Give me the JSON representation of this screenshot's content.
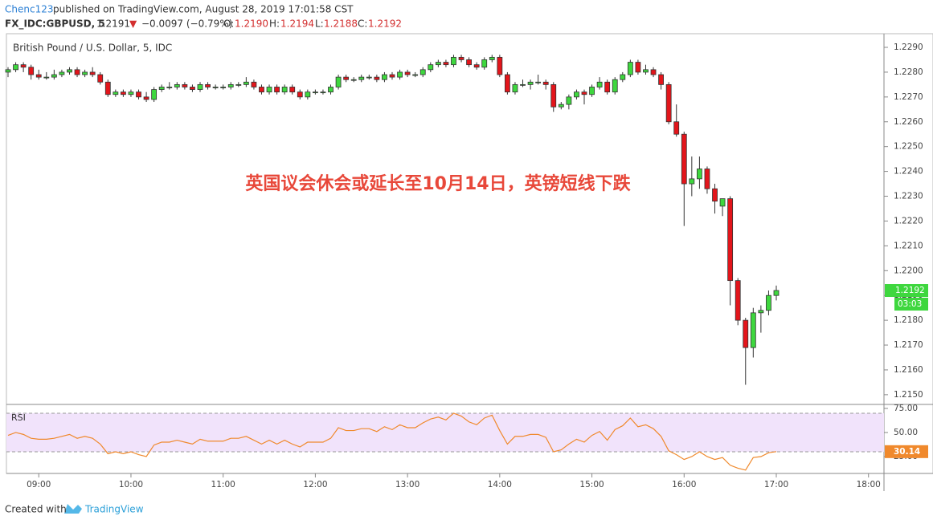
{
  "header": {
    "author": "Chenc123",
    "published": "published on TradingView.com, August 28, 2019 17:01:58 CST",
    "symbol": "FX_IDC:GBPUSD, 5",
    "last": "1.2191",
    "arrow": "▼",
    "change": "−0.0097 (−0.79%)",
    "o_label": "O:",
    "o": "1.2190",
    "h_label": "H:",
    "h": "1.2194",
    "l_label": "L:",
    "l": "1.2188",
    "c_label": "C:",
    "c": "1.2192"
  },
  "chart_data": {
    "type": "candlestick",
    "title": "British Pound / U.S. Dollar, 5, IDC",
    "annotation": "英国议会休会或延长至10月14日，英镑短线下跌",
    "up_color": "#3ed73e",
    "down_color": "#e3151b",
    "ylim": [
      1.21464,
      1.22955
    ],
    "yticks": [
      {
        "value": 1.215,
        "label": "1.2150"
      },
      {
        "value": 1.216,
        "label": "1.2160"
      },
      {
        "value": 1.217,
        "label": "1.2170"
      },
      {
        "value": 1.218,
        "label": "1.2180"
      },
      {
        "value": 1.219,
        "label": "1.2190"
      },
      {
        "value": 1.22,
        "label": "1.2200"
      },
      {
        "value": 1.221,
        "label": "1.2210"
      },
      {
        "value": 1.222,
        "label": "1.2220"
      },
      {
        "value": 1.223,
        "label": "1.2230"
      },
      {
        "value": 1.224,
        "label": "1.2240"
      },
      {
        "value": 1.225,
        "label": "1.2250"
      },
      {
        "value": 1.226,
        "label": "1.2260"
      },
      {
        "value": 1.227,
        "label": "1.2270"
      },
      {
        "value": 1.228,
        "label": "1.2280"
      },
      {
        "value": 1.229,
        "label": "1.2290"
      }
    ],
    "xticks": [
      "09:00",
      "10:00",
      "11:00",
      "12:00",
      "13:00",
      "14:00",
      "15:00",
      "16:00",
      "17:00",
      "18:00"
    ],
    "countdown": "03:03",
    "ohlc": [
      [
        1.228,
        1.2282,
        1.2278,
        1.2281
      ],
      [
        1.2281,
        1.2284,
        1.228,
        1.2283
      ],
      [
        1.2283,
        1.2284,
        1.228,
        1.2282
      ],
      [
        1.2282,
        1.2283,
        1.2277,
        1.2279
      ],
      [
        1.2279,
        1.2281,
        1.2277,
        1.2278
      ],
      [
        1.2278,
        1.228,
        1.2277,
        1.2278
      ],
      [
        1.2278,
        1.2281,
        1.2277,
        1.2279
      ],
      [
        1.2279,
        1.2281,
        1.2278,
        1.228
      ],
      [
        1.228,
        1.2282,
        1.2279,
        1.2281
      ],
      [
        1.2281,
        1.2282,
        1.2278,
        1.2279
      ],
      [
        1.2279,
        1.2281,
        1.2278,
        1.228
      ],
      [
        1.228,
        1.2282,
        1.2278,
        1.2279
      ],
      [
        1.2279,
        1.228,
        1.2275,
        1.2276
      ],
      [
        1.2276,
        1.2277,
        1.227,
        1.2271
      ],
      [
        1.2271,
        1.2273,
        1.227,
        1.2272
      ],
      [
        1.2272,
        1.2273,
        1.227,
        1.2271
      ],
      [
        1.2271,
        1.2273,
        1.227,
        1.2272
      ],
      [
        1.2272,
        1.2273,
        1.2269,
        1.227
      ],
      [
        1.227,
        1.2272,
        1.2268,
        1.2269
      ],
      [
        1.2269,
        1.2274,
        1.2268,
        1.2273
      ],
      [
        1.2273,
        1.2275,
        1.2272,
        1.2274
      ],
      [
        1.2274,
        1.2276,
        1.2273,
        1.2274
      ],
      [
        1.2274,
        1.2276,
        1.2273,
        1.2275
      ],
      [
        1.2275,
        1.2276,
        1.2273,
        1.2274
      ],
      [
        1.2274,
        1.2275,
        1.2272,
        1.2273
      ],
      [
        1.2273,
        1.2276,
        1.2272,
        1.2275
      ],
      [
        1.2275,
        1.2276,
        1.2273,
        1.2274
      ],
      [
        1.2274,
        1.2275,
        1.2273,
        1.2274
      ],
      [
        1.2274,
        1.2275,
        1.2273,
        1.2274
      ],
      [
        1.2274,
        1.2276,
        1.2273,
        1.2275
      ],
      [
        1.2275,
        1.2276,
        1.2274,
        1.2275
      ],
      [
        1.2275,
        1.2278,
        1.2274,
        1.2276
      ],
      [
        1.2276,
        1.2277,
        1.2273,
        1.2274
      ],
      [
        1.2274,
        1.2275,
        1.2271,
        1.2272
      ],
      [
        1.2272,
        1.2275,
        1.2271,
        1.2274
      ],
      [
        1.2274,
        1.2275,
        1.2271,
        1.2272
      ],
      [
        1.2272,
        1.2275,
        1.2271,
        1.2274
      ],
      [
        1.2274,
        1.2275,
        1.2271,
        1.2272
      ],
      [
        1.2272,
        1.2273,
        1.2269,
        1.227
      ],
      [
        1.227,
        1.2273,
        1.2269,
        1.2272
      ],
      [
        1.2272,
        1.2273,
        1.2271,
        1.2272
      ],
      [
        1.2272,
        1.2273,
        1.2271,
        1.2272
      ],
      [
        1.2272,
        1.2275,
        1.2271,
        1.2274
      ],
      [
        1.2274,
        1.2279,
        1.2273,
        1.2278
      ],
      [
        1.2278,
        1.2279,
        1.2276,
        1.2277
      ],
      [
        1.2277,
        1.2278,
        1.2276,
        1.2277
      ],
      [
        1.2277,
        1.2279,
        1.2276,
        1.2278
      ],
      [
        1.2278,
        1.2279,
        1.2277,
        1.2278
      ],
      [
        1.2278,
        1.2279,
        1.2276,
        1.2277
      ],
      [
        1.2277,
        1.228,
        1.2276,
        1.2279
      ],
      [
        1.2279,
        1.228,
        1.2277,
        1.2278
      ],
      [
        1.2278,
        1.2281,
        1.2277,
        1.228
      ],
      [
        1.228,
        1.2281,
        1.2278,
        1.2279
      ],
      [
        1.2279,
        1.228,
        1.2278,
        1.2279
      ],
      [
        1.2279,
        1.2282,
        1.2278,
        1.2281
      ],
      [
        1.2281,
        1.2284,
        1.228,
        1.2283
      ],
      [
        1.2283,
        1.2285,
        1.2282,
        1.2284
      ],
      [
        1.2284,
        1.2285,
        1.2282,
        1.2283
      ],
      [
        1.2283,
        1.2287,
        1.2282,
        1.2286
      ],
      [
        1.2286,
        1.2287,
        1.2284,
        1.2285
      ],
      [
        1.2285,
        1.2286,
        1.2282,
        1.2283
      ],
      [
        1.2283,
        1.2284,
        1.2281,
        1.2282
      ],
      [
        1.2282,
        1.2286,
        1.2281,
        1.2285
      ],
      [
        1.2285,
        1.2287,
        1.2284,
        1.2286
      ],
      [
        1.2286,
        1.2287,
        1.2278,
        1.2279
      ],
      [
        1.2279,
        1.228,
        1.2271,
        1.2272
      ],
      [
        1.2272,
        1.2276,
        1.2271,
        1.2275
      ],
      [
        1.2275,
        1.2277,
        1.2274,
        1.2275
      ],
      [
        1.2275,
        1.2277,
        1.2273,
        1.2276
      ],
      [
        1.2276,
        1.2279,
        1.2275,
        1.2276
      ],
      [
        1.2276,
        1.2277,
        1.2273,
        1.2275
      ],
      [
        1.2275,
        1.2276,
        1.2264,
        1.2266
      ],
      [
        1.2266,
        1.2268,
        1.2265,
        1.2267
      ],
      [
        1.2267,
        1.2271,
        1.2265,
        1.227
      ],
      [
        1.227,
        1.2273,
        1.2269,
        1.2272
      ],
      [
        1.2272,
        1.2273,
        1.2267,
        1.2271
      ],
      [
        1.2271,
        1.2275,
        1.227,
        1.2274
      ],
      [
        1.2274,
        1.2278,
        1.2273,
        1.2276
      ],
      [
        1.2276,
        1.2277,
        1.2271,
        1.2272
      ],
      [
        1.2272,
        1.2278,
        1.2271,
        1.2277
      ],
      [
        1.2277,
        1.228,
        1.2276,
        1.2279
      ],
      [
        1.2279,
        1.2285,
        1.2278,
        1.2284
      ],
      [
        1.2284,
        1.2285,
        1.2279,
        1.228
      ],
      [
        1.228,
        1.2283,
        1.2279,
        1.2281
      ],
      [
        1.2281,
        1.2282,
        1.2278,
        1.2279
      ],
      [
        1.2279,
        1.228,
        1.2273,
        1.2275
      ],
      [
        1.2275,
        1.2276,
        1.2259,
        1.226
      ],
      [
        1.226,
        1.2267,
        1.2254,
        1.2255
      ],
      [
        1.2255,
        1.2256,
        1.2218,
        1.2235
      ],
      [
        1.2235,
        1.2246,
        1.223,
        1.2237
      ],
      [
        1.2237,
        1.2246,
        1.2233,
        1.2241
      ],
      [
        1.2241,
        1.2242,
        1.2231,
        1.2233
      ],
      [
        1.2233,
        1.2235,
        1.2223,
        1.2228
      ],
      [
        1.2226,
        1.2229,
        1.2222,
        1.2229
      ],
      [
        1.2229,
        1.223,
        1.2186,
        1.2196
      ],
      [
        1.2196,
        1.2197,
        1.2178,
        1.218
      ],
      [
        1.218,
        1.2181,
        1.2154,
        1.2169
      ],
      [
        1.2169,
        1.2185,
        1.2165,
        1.2183
      ],
      [
        1.2183,
        1.2186,
        1.2175,
        1.2184
      ],
      [
        1.2184,
        1.2192,
        1.2182,
        1.219
      ],
      [
        1.219,
        1.2194,
        1.2188,
        1.2192
      ]
    ],
    "rsi": {
      "name": "RSI",
      "color": "#f0892c",
      "band_color": "#f1e3fb",
      "ylim": [
        7.5,
        78.3
      ],
      "band": [
        30,
        70
      ],
      "yticks": [
        {
          "value": 25,
          "label": "25.00"
        },
        {
          "value": 50,
          "label": "50.00"
        },
        {
          "value": 75,
          "label": "75.00"
        }
      ],
      "values": [
        47,
        50,
        48,
        44,
        43,
        43,
        44,
        46,
        48,
        44,
        46,
        44,
        38,
        28,
        30,
        28,
        30,
        27,
        25,
        37,
        40,
        40,
        42,
        40,
        38,
        43,
        41,
        41,
        41,
        44,
        44,
        46,
        42,
        38,
        42,
        38,
        42,
        38,
        35,
        40,
        40,
        40,
        44,
        55,
        52,
        52,
        54,
        54,
        51,
        56,
        53,
        58,
        55,
        55,
        60,
        64,
        66,
        63,
        70,
        67,
        61,
        58,
        65,
        68,
        52,
        38,
        46,
        46,
        48,
        48,
        45,
        30,
        32,
        38,
        43,
        40,
        47,
        51,
        42,
        53,
        57,
        65,
        56,
        58,
        54,
        46,
        31,
        27,
        22,
        25,
        30,
        25,
        22,
        24,
        16,
        13,
        11,
        24,
        25,
        29,
        30.14
      ]
    }
  },
  "footer": {
    "created": "Created with",
    "brand": "TradingView"
  }
}
